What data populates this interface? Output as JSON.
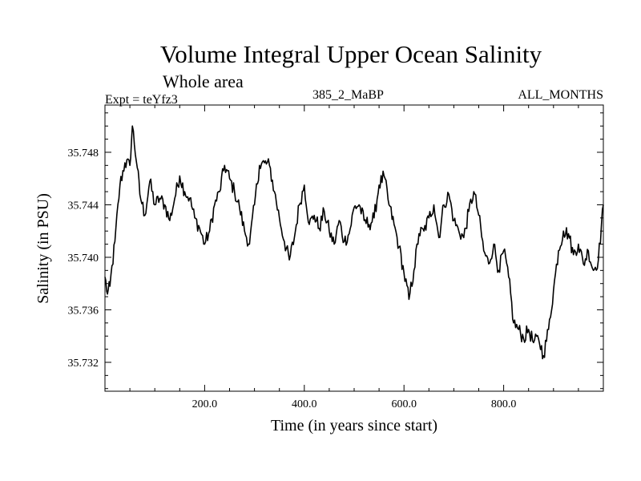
{
  "header": {
    "title": "Volume Integral Upper Ocean Salinity",
    "subtitle": "Whole area",
    "expt": "Expt = teYfz3",
    "run": "385_2_MaBP",
    "months": "ALL_MONTHS"
  },
  "chart_data": {
    "type": "line",
    "title": "Volume Integral Upper Ocean Salinity",
    "xlabel": "Time (in years since start)",
    "ylabel": "Salinity (in PSU)",
    "xlim": [
      0,
      1000
    ],
    "ylim": [
      35.7298,
      35.7516
    ],
    "x_ticks": [
      200,
      400,
      600,
      800
    ],
    "x_tick_labels": [
      "200.0",
      "400.0",
      "600.0",
      "800.0"
    ],
    "y_ticks": [
      35.732,
      35.736,
      35.74,
      35.744,
      35.748
    ],
    "y_tick_labels": [
      "35.732",
      "35.736",
      "35.740",
      "35.744",
      "35.748"
    ],
    "grid": false,
    "series": [
      {
        "name": "Salinity",
        "color": "#000000",
        "x": [
          0,
          5,
          10,
          20,
          30,
          40,
          50,
          55,
          65,
          70,
          80,
          90,
          100,
          110,
          120,
          130,
          140,
          150,
          160,
          170,
          180,
          190,
          200,
          210,
          220,
          230,
          240,
          250,
          260,
          270,
          280,
          290,
          300,
          310,
          320,
          330,
          340,
          350,
          360,
          370,
          380,
          390,
          400,
          410,
          420,
          430,
          440,
          450,
          460,
          470,
          480,
          490,
          500,
          510,
          520,
          530,
          540,
          550,
          560,
          570,
          580,
          590,
          600,
          610,
          620,
          630,
          640,
          650,
          660,
          670,
          680,
          690,
          700,
          710,
          720,
          730,
          740,
          750,
          760,
          770,
          780,
          790,
          800,
          810,
          820,
          830,
          840,
          850,
          860,
          870,
          880,
          890,
          900,
          910,
          920,
          930,
          940,
          950,
          960,
          970,
          980,
          990,
          1000
        ],
        "values": [
          35.7385,
          35.7372,
          35.7378,
          35.7412,
          35.7455,
          35.7472,
          35.747,
          35.75,
          35.7468,
          35.7448,
          35.7432,
          35.7458,
          35.744,
          35.7445,
          35.744,
          35.7428,
          35.7445,
          35.7462,
          35.745,
          35.7445,
          35.743,
          35.7422,
          35.741,
          35.742,
          35.744,
          35.745,
          35.747,
          35.746,
          35.745,
          35.7438,
          35.742,
          35.741,
          35.744,
          35.747,
          35.7472,
          35.747,
          35.745,
          35.743,
          35.7412,
          35.7398,
          35.7415,
          35.744,
          35.7455,
          35.7425,
          35.7432,
          35.7422,
          35.7435,
          35.742,
          35.741,
          35.7428,
          35.7412,
          35.7418,
          35.7438,
          35.744,
          35.7428,
          35.7425,
          35.743,
          35.7455,
          35.7462,
          35.744,
          35.7425,
          35.7408,
          35.7388,
          35.7368,
          35.739,
          35.7418,
          35.742,
          35.743,
          35.744,
          35.7415,
          35.744,
          35.7448,
          35.7428,
          35.742,
          35.7415,
          35.7435,
          35.745,
          35.7432,
          35.7405,
          35.7395,
          35.741,
          35.739,
          35.7405,
          35.7385,
          35.735,
          35.7345,
          35.7338,
          35.7345,
          35.7335,
          35.7338,
          35.7325,
          35.7345,
          35.7375,
          35.7405,
          35.742,
          35.7418,
          35.7402,
          35.741,
          35.7395,
          35.7405,
          35.739,
          35.7398,
          35.744
        ]
      }
    ]
  }
}
